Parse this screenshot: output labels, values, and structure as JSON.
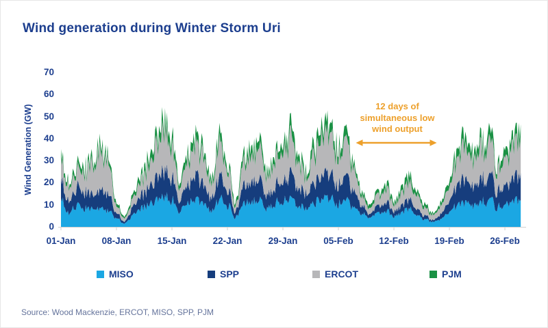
{
  "colors": {
    "navy_text": "#1C3E8E",
    "annotation_orange": "#EDA02B",
    "source_gray": "#64739B",
    "axis_line": "#CFCFCF",
    "background": "#FFFFFF"
  },
  "title": "Wind generation during Winter Storm Uri",
  "source_line": "Source: Wood Mackenzie, ERCOT, MISO, SPP, PJM",
  "annotation": {
    "lines": [
      "12 days of",
      "simultaneous low",
      "wind output"
    ],
    "color": "#EDA02B",
    "arrow_days": [
      37.2,
      47.4
    ]
  },
  "chart_data": {
    "type": "area",
    "stacked": true,
    "title": "Wind generation during Winter Storm Uri",
    "xlabel": "",
    "ylabel": "Wind Generation (GW)",
    "ylim": [
      0,
      70
    ],
    "yticks": [
      0,
      10,
      20,
      30,
      40,
      50,
      60,
      70
    ],
    "xtick_labels": [
      "01-Jan",
      "08-Jan",
      "15-Jan",
      "22-Jan",
      "29-Jan",
      "05-Feb",
      "12-Feb",
      "19-Feb",
      "26-Feb"
    ],
    "xtick_days": [
      0,
      7,
      14,
      21,
      28,
      35,
      42,
      49,
      56
    ],
    "x_unit": "day index from 01-Jan (daily estimated values, hourly-noisy in original)",
    "grid": false,
    "legend_position": "bottom",
    "series": [
      {
        "name": "MISO",
        "color": "#1BA7E3",
        "values": [
          14,
          8,
          12,
          10,
          10,
          11,
          9,
          5,
          2,
          6,
          10,
          12,
          15,
          16,
          14,
          9,
          13,
          15,
          14,
          10,
          15,
          12,
          5,
          13,
          14,
          15,
          10,
          13,
          15,
          16,
          12,
          10,
          13,
          15,
          17,
          13,
          15,
          11,
          7,
          5,
          8,
          9,
          6,
          8,
          10,
          6,
          4,
          3,
          5,
          8,
          13,
          15,
          12,
          14,
          16,
          11,
          13,
          15,
          16
        ]
      },
      {
        "name": "SPP",
        "color": "#163D7D",
        "values": [
          10,
          7,
          10,
          9,
          8,
          11,
          9,
          3,
          1,
          4,
          7,
          9,
          12,
          14,
          12,
          6,
          10,
          13,
          11,
          8,
          12,
          9,
          3,
          10,
          11,
          12,
          7,
          10,
          12,
          14,
          10,
          8,
          11,
          13,
          15,
          11,
          13,
          9,
          4,
          2,
          4,
          5,
          3,
          4,
          5,
          3,
          2,
          1,
          3,
          6,
          12,
          14,
          10,
          13,
          14,
          9,
          11,
          13,
          14
        ]
      },
      {
        "name": "ERCOT",
        "color": "#B7B7B9",
        "values": [
          11,
          8,
          10,
          11,
          17,
          22,
          17,
          4,
          2,
          4,
          8,
          11,
          18,
          22,
          17,
          8,
          13,
          17,
          16,
          9,
          18,
          12,
          3,
          13,
          15,
          18,
          10,
          15,
          18,
          20,
          14,
          9,
          16,
          21,
          24,
          16,
          19,
          12,
          5,
          3,
          6,
          8,
          4,
          7,
          9,
          7,
          4,
          3,
          5,
          8,
          15,
          20,
          14,
          18,
          21,
          12,
          16,
          19,
          19
        ]
      },
      {
        "name": "PJM",
        "color": "#1A9144",
        "values": [
          3,
          2,
          3,
          3,
          3,
          4,
          3,
          2,
          1,
          2,
          3,
          4,
          5,
          6,
          5,
          3,
          4,
          5,
          4,
          3,
          5,
          3,
          2,
          4,
          5,
          5,
          3,
          4,
          5,
          6,
          4,
          3,
          5,
          6,
          6,
          5,
          5,
          3,
          2,
          2,
          2,
          3,
          2,
          3,
          4,
          2,
          2,
          1,
          2,
          3,
          5,
          6,
          4,
          5,
          6,
          3,
          5,
          5,
          6
        ]
      }
    ]
  },
  "legend_x_positions": [
    140,
    302,
    455,
    626
  ]
}
